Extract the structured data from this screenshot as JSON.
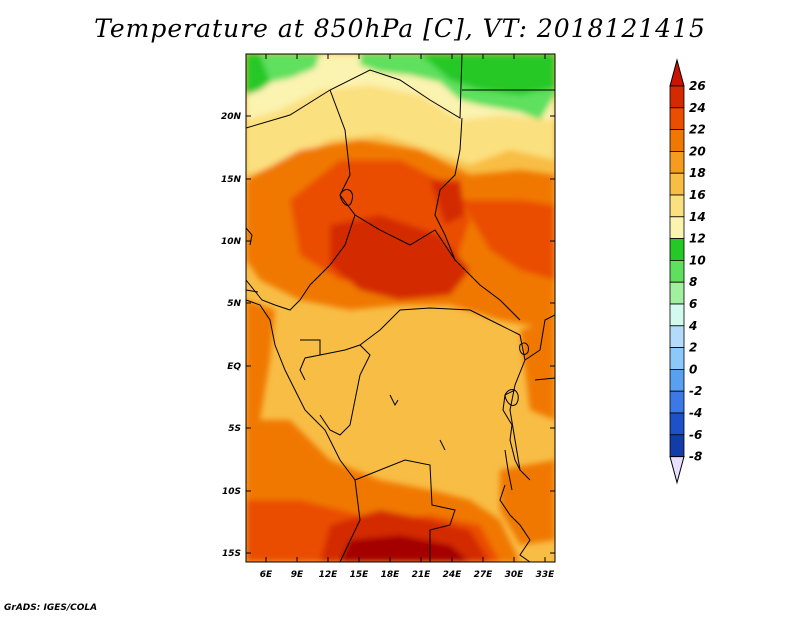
{
  "title": "Temperature at 850hPa [C], VT: 2018121415",
  "footer": "GrADS: IGES/COLA",
  "map": {
    "lat_labels": [
      "20N",
      "15N",
      "10N",
      "5N",
      "EQ",
      "5S",
      "10S",
      "15S"
    ],
    "lon_labels": [
      "6E",
      "9E",
      "12E",
      "15E",
      "18E",
      "21E",
      "24E",
      "27E",
      "30E",
      "33E"
    ]
  },
  "colorbar": {
    "labels": [
      "26",
      "24",
      "22",
      "20",
      "18",
      "16",
      "14",
      "12",
      "10",
      "8",
      "6",
      "4",
      "2",
      "0",
      "-2",
      "-4",
      "-6",
      "-8"
    ],
    "colors": [
      "#a50000",
      "#d42a00",
      "#ea4e00",
      "#f07800",
      "#f59b1e",
      "#f8bd45",
      "#fbe080",
      "#fbf3b0",
      "#26c826",
      "#5ee05e",
      "#a0f0a0",
      "#d2faee",
      "#b4dcfa",
      "#8cc8f8",
      "#5aa0f0",
      "#3c78e6",
      "#1e50c8",
      "#143ca8",
      "#0a1a78"
    ],
    "top_arrow_color": "#c81400",
    "bottom_arrow_color": "#e8e0ff"
  }
}
